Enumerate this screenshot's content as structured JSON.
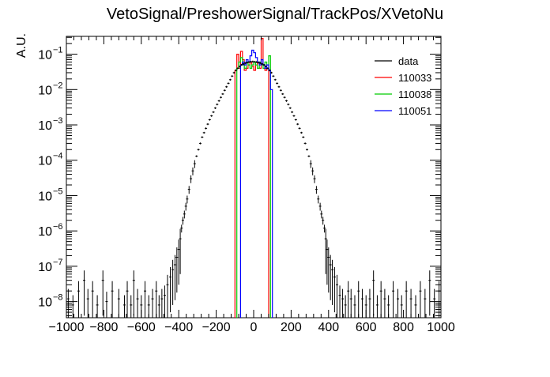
{
  "chart_data": {
    "type": "line",
    "title": "VetoSignal/PreshowerSignal/TrackPos/XVetoNu",
    "xlabel": "",
    "ylabel": "A.U.",
    "xlim": [
      -1000,
      1000
    ],
    "ylim": [
      3.5e-09,
      0.32
    ],
    "yscale": "log",
    "grid": false,
    "legend_position": "top-right",
    "x_ticks": [
      -1000,
      -800,
      -600,
      -400,
      -200,
      0,
      200,
      400,
      600,
      800,
      1000
    ],
    "x_tick_labels": [
      "−1000",
      "−800",
      "−600",
      "−400",
      "−200",
      "0",
      "200",
      "400",
      "600",
      "800",
      "1000"
    ],
    "y_ticks": [
      1e-08,
      1e-07,
      1e-06,
      1e-05,
      0.0001,
      0.001,
      0.01,
      0.1
    ],
    "y_tick_labels": [
      {
        "base": "10",
        "exp": "−8"
      },
      {
        "base": "10",
        "exp": "−7"
      },
      {
        "base": "10",
        "exp": "−6"
      },
      {
        "base": "10",
        "exp": "−5"
      },
      {
        "base": "10",
        "exp": "−4"
      },
      {
        "base": "10",
        "exp": "−3"
      },
      {
        "base": "10",
        "exp": "−2"
      },
      {
        "base": "10",
        "exp": "−1"
      }
    ],
    "series": [
      {
        "name": "data",
        "color": "#000000",
        "style": "points-with-errors",
        "points": [
          [
            -990,
            1.2e-08
          ],
          [
            -965,
            8e-09
          ],
          [
            -935,
            2e-08
          ],
          [
            -905,
            4e-08
          ],
          [
            -885,
            1.2e-08
          ],
          [
            -860,
            2e-08
          ],
          [
            -835,
            8e-09
          ],
          [
            -805,
            4e-08
          ],
          [
            -785,
            1e-08
          ],
          [
            -755,
            2e-08
          ],
          [
            -720,
            1.2e-08
          ],
          [
            -690,
            8e-09
          ],
          [
            -675,
            2e-08
          ],
          [
            -655,
            8e-09
          ],
          [
            -640,
            4e-08
          ],
          [
            -620,
            1.2e-08
          ],
          [
            -600,
            8e-09
          ],
          [
            -580,
            2e-08
          ],
          [
            -560,
            8e-09
          ],
          [
            -540,
            1.2e-08
          ],
          [
            -520,
            2e-08
          ],
          [
            -505,
            8e-09
          ],
          [
            -490,
            1.2e-08
          ],
          [
            -475,
            1.5e-08
          ],
          [
            -460,
            3e-08
          ],
          [
            -445,
            5e-08
          ],
          [
            -432,
            8e-08
          ],
          [
            -420,
            1.1e-07
          ],
          [
            -410,
            1.8e-07
          ],
          [
            -400,
            3e-07
          ],
          [
            -392,
            6e-07
          ],
          [
            -385,
            1.2e-06
          ],
          [
            -378,
            2e-06
          ],
          [
            -370,
            3e-06
          ],
          [
            -362,
            5e-06
          ],
          [
            -355,
            8e-06
          ],
          [
            -345,
            1.5e-05
          ],
          [
            -335,
            3e-05
          ],
          [
            -325,
            5e-05
          ],
          [
            -315,
            8e-05
          ],
          [
            -305,
            0.00013
          ],
          [
            -295,
            0.0002
          ],
          [
            -285,
            0.0003
          ],
          [
            -275,
            0.00045
          ],
          [
            -265,
            0.0006
          ],
          [
            -255,
            0.0008
          ],
          [
            -245,
            0.00105
          ],
          [
            -235,
            0.0014
          ],
          [
            -225,
            0.0018
          ],
          [
            -215,
            0.0023
          ],
          [
            -205,
            0.003
          ],
          [
            -195,
            0.0038
          ],
          [
            -185,
            0.0048
          ],
          [
            -175,
            0.006
          ],
          [
            -165,
            0.0075
          ],
          [
            -155,
            0.0095
          ],
          [
            -145,
            0.012
          ],
          [
            -135,
            0.015
          ],
          [
            -125,
            0.019
          ],
          [
            -115,
            0.024
          ],
          [
            -105,
            0.03
          ],
          [
            -95,
            0.035
          ],
          [
            -85,
            0.04
          ],
          [
            -75,
            0.045
          ],
          [
            -65,
            0.05
          ],
          [
            -55,
            0.053
          ],
          [
            -45,
            0.056
          ],
          [
            -35,
            0.058
          ],
          [
            -25,
            0.06
          ],
          [
            -15,
            0.061
          ],
          [
            -5,
            0.062
          ],
          [
            5,
            0.061
          ],
          [
            15,
            0.06
          ],
          [
            25,
            0.058
          ],
          [
            35,
            0.056
          ],
          [
            45,
            0.053
          ],
          [
            55,
            0.05
          ],
          [
            65,
            0.045
          ],
          [
            75,
            0.04
          ],
          [
            85,
            0.035
          ],
          [
            95,
            0.03
          ],
          [
            105,
            0.024
          ],
          [
            115,
            0.019
          ],
          [
            125,
            0.015
          ],
          [
            135,
            0.012
          ],
          [
            145,
            0.0095
          ],
          [
            155,
            0.0075
          ],
          [
            165,
            0.006
          ],
          [
            175,
            0.0048
          ],
          [
            185,
            0.0038
          ],
          [
            195,
            0.003
          ],
          [
            205,
            0.0023
          ],
          [
            215,
            0.0018
          ],
          [
            225,
            0.0014
          ],
          [
            235,
            0.00105
          ],
          [
            245,
            0.0008
          ],
          [
            255,
            0.0006
          ],
          [
            265,
            0.00045
          ],
          [
            275,
            0.0003
          ],
          [
            285,
            0.0002
          ],
          [
            295,
            0.00013
          ],
          [
            305,
            8e-05
          ],
          [
            315,
            5e-05
          ],
          [
            325,
            3e-05
          ],
          [
            335,
            1.5e-05
          ],
          [
            345,
            8e-06
          ],
          [
            355,
            5e-06
          ],
          [
            362,
            3e-06
          ],
          [
            370,
            2e-06
          ],
          [
            378,
            1.2e-06
          ],
          [
            385,
            6e-07
          ],
          [
            392,
            3e-07
          ],
          [
            400,
            1.8e-07
          ],
          [
            410,
            1.1e-07
          ],
          [
            420,
            8e-08
          ],
          [
            432,
            5e-08
          ],
          [
            445,
            3e-08
          ],
          [
            460,
            1.5e-08
          ],
          [
            475,
            1.2e-08
          ],
          [
            490,
            8e-09
          ],
          [
            505,
            2e-08
          ],
          [
            520,
            1.2e-08
          ],
          [
            540,
            8e-09
          ],
          [
            560,
            2e-08
          ],
          [
            580,
            1.2e-08
          ],
          [
            600,
            8e-09
          ],
          [
            620,
            1.2e-08
          ],
          [
            640,
            4e-08
          ],
          [
            660,
            8e-09
          ],
          [
            680,
            2e-08
          ],
          [
            700,
            1.2e-08
          ],
          [
            720,
            8e-09
          ],
          [
            745,
            2e-08
          ],
          [
            770,
            1.2e-08
          ],
          [
            790,
            8e-09
          ],
          [
            815,
            2e-08
          ],
          [
            840,
            1.2e-08
          ],
          [
            865,
            8e-09
          ],
          [
            890,
            2e-08
          ],
          [
            915,
            1.2e-08
          ],
          [
            940,
            4e-08
          ],
          [
            965,
            1.2e-08
          ],
          [
            990,
            2e-08
          ]
        ]
      },
      {
        "name": "110033",
        "color": "#ff0000",
        "style": "step",
        "bins": [
          [
            -100,
            -90,
            0.035
          ],
          [
            -90,
            -80,
            0.1
          ],
          [
            -80,
            -70,
            0.04
          ],
          [
            -70,
            -60,
            0.12
          ],
          [
            -60,
            -50,
            0.07
          ],
          [
            -50,
            -40,
            0.035
          ],
          [
            -40,
            -30,
            0.04
          ],
          [
            -30,
            -20,
            0.05
          ],
          [
            -20,
            -10,
            0.06
          ],
          [
            -10,
            0,
            0.045
          ],
          [
            0,
            10,
            0.035
          ],
          [
            10,
            20,
            0.05
          ],
          [
            20,
            30,
            0.06
          ],
          [
            30,
            40,
            0.04
          ],
          [
            40,
            50,
            0.28
          ],
          [
            50,
            60,
            0.05
          ],
          [
            60,
            70,
            0.035
          ],
          [
            70,
            80,
            0.04
          ]
        ]
      },
      {
        "name": "110038",
        "color": "#00cc00",
        "style": "step",
        "bins": [
          [
            -90,
            -80,
            0.04
          ],
          [
            -80,
            -70,
            0.06
          ],
          [
            -70,
            -60,
            0.08
          ],
          [
            -60,
            -50,
            0.05
          ],
          [
            -50,
            -40,
            0.04
          ],
          [
            -40,
            -30,
            0.06
          ],
          [
            -30,
            -20,
            0.05
          ],
          [
            -20,
            -10,
            0.04
          ],
          [
            -10,
            0,
            0.05
          ],
          [
            0,
            10,
            0.06
          ],
          [
            10,
            20,
            0.05
          ],
          [
            20,
            30,
            0.04
          ],
          [
            30,
            40,
            0.06
          ],
          [
            40,
            50,
            0.05
          ],
          [
            50,
            60,
            0.04
          ],
          [
            60,
            70,
            0.06
          ],
          [
            70,
            80,
            0.05
          ],
          [
            80,
            90,
            0.09
          ]
        ]
      },
      {
        "name": "110051",
        "color": "#0000ff",
        "style": "step",
        "bins": [
          [
            -70,
            -60,
            0.05
          ],
          [
            -60,
            -50,
            0.06
          ],
          [
            -50,
            -40,
            0.05
          ],
          [
            -40,
            -30,
            0.07
          ],
          [
            -30,
            -20,
            0.06
          ],
          [
            -20,
            -10,
            0.09
          ],
          [
            -10,
            0,
            0.13
          ],
          [
            0,
            10,
            0.11
          ],
          [
            10,
            20,
            0.08
          ],
          [
            20,
            30,
            0.06
          ],
          [
            30,
            40,
            0.05
          ],
          [
            40,
            50,
            0.07
          ],
          [
            50,
            60,
            0.05
          ],
          [
            60,
            70,
            0.04
          ],
          [
            70,
            80,
            0.05
          ],
          [
            80,
            90,
            0.035
          ],
          [
            90,
            100,
            0.01
          ]
        ]
      }
    ]
  }
}
